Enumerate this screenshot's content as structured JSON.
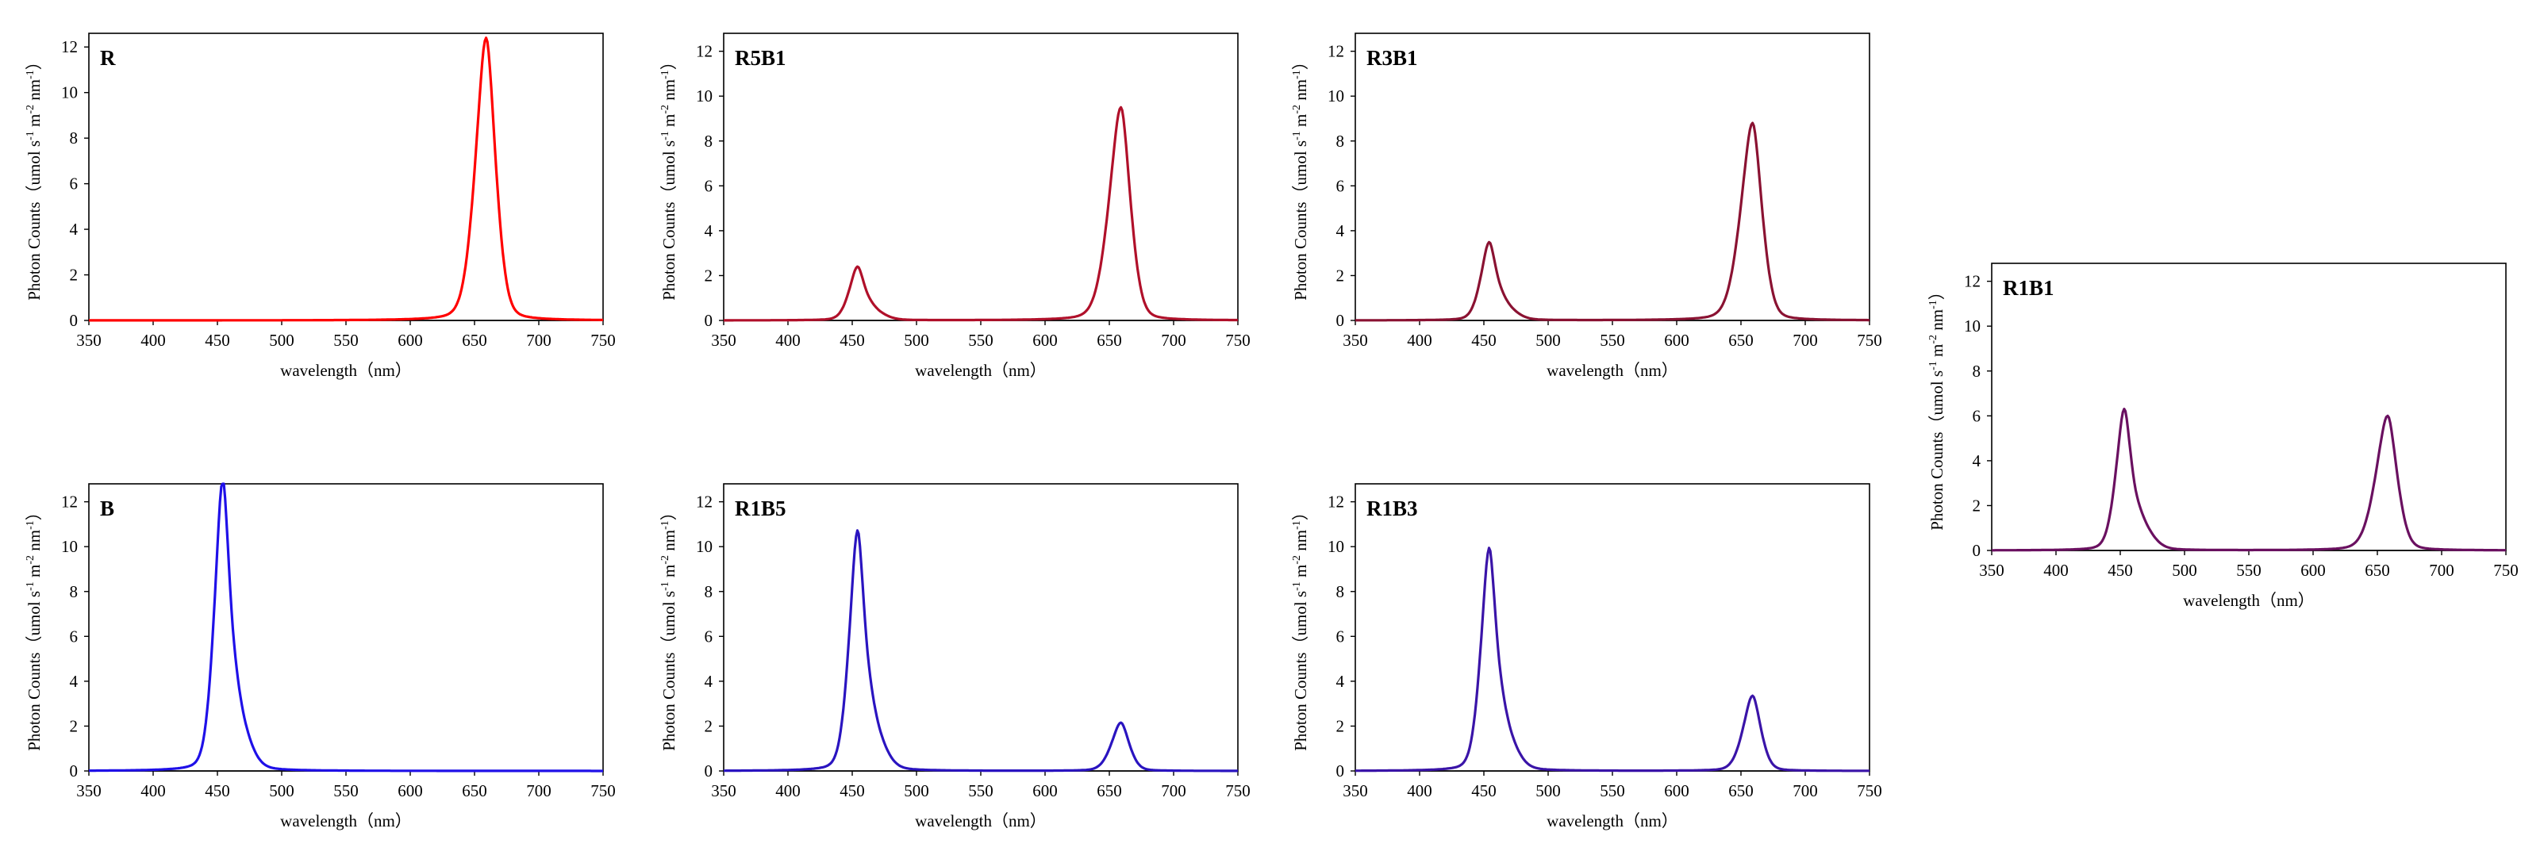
{
  "chart_data": [
    {
      "id": "R",
      "type": "line",
      "title": "R",
      "color": "#ff0000",
      "xlabel": "wavelength（nm）",
      "ylabel_prefix": "Photon Counts（umol s",
      "ylabel_sup1": "-1",
      "ylabel_mid": " m",
      "ylabel_sup2": "-2",
      "ylabel_mid2": " nm",
      "ylabel_sup3": "-1",
      "ylabel_suffix": "）",
      "xlim": [
        350,
        750
      ],
      "ylim": [
        0,
        12.6
      ],
      "xticks": [
        350,
        400,
        450,
        500,
        550,
        600,
        650,
        700,
        750
      ],
      "yticks": [
        0,
        2,
        4,
        6,
        8,
        10,
        12
      ],
      "xtick_labels": [
        "350",
        "400",
        "450",
        "500",
        "550",
        "600",
        "650",
        "700",
        "750"
      ],
      "ytick_labels": [
        "0",
        "2",
        "4",
        "6",
        "8",
        "10",
        "12"
      ],
      "series": [
        {
          "name": "R",
          "peaks": [
            {
              "center": 659,
              "height": 12.4,
              "width_left": 9,
              "width_right": 8
            }
          ]
        }
      ]
    },
    {
      "id": "R5B1",
      "type": "line",
      "title": "R5B1",
      "color": "#b0102a",
      "xlabel": "wavelength（nm）",
      "ylabel_prefix": "Photon Counts（umol s",
      "ylabel_sup1": "-1",
      "ylabel_mid": " m",
      "ylabel_sup2": "-2",
      "ylabel_mid2": " nm",
      "ylabel_sup3": "-1",
      "ylabel_suffix": "）",
      "xlim": [
        350,
        750
      ],
      "ylim": [
        0,
        12.8
      ],
      "xticks": [
        350,
        400,
        450,
        500,
        550,
        600,
        650,
        700,
        750
      ],
      "yticks": [
        0,
        2,
        4,
        6,
        8,
        10,
        12
      ],
      "xtick_labels": [
        "350",
        "400",
        "450",
        "500",
        "550",
        "600",
        "650",
        "700",
        "750"
      ],
      "ytick_labels": [
        "0",
        "2",
        "4",
        "6",
        "8",
        "10",
        "12"
      ],
      "series": [
        {
          "name": "R5B1",
          "peaks": [
            {
              "center": 454,
              "height": 2.3,
              "width_left": 7,
              "width_right": 6
            },
            {
              "center": 466,
              "height": 0.45,
              "width_left": 7,
              "width_right": 9
            },
            {
              "center": 659,
              "height": 9.5,
              "width_left": 10,
              "width_right": 8
            }
          ]
        }
      ]
    },
    {
      "id": "R3B1",
      "type": "line",
      "title": "R3B1",
      "color": "#8a1232",
      "xlabel": "wavelength（nm）",
      "ylabel_prefix": "Photon Counts（umol s",
      "ylabel_sup1": "-1",
      "ylabel_mid": " m",
      "ylabel_sup2": "-2",
      "ylabel_mid2": " nm",
      "ylabel_sup3": "-1",
      "ylabel_suffix": "）",
      "xlim": [
        350,
        750
      ],
      "ylim": [
        0,
        12.8
      ],
      "xticks": [
        350,
        400,
        450,
        500,
        550,
        600,
        650,
        700,
        750
      ],
      "yticks": [
        0,
        2,
        4,
        6,
        8,
        10,
        12
      ],
      "xtick_labels": [
        "350",
        "400",
        "450",
        "500",
        "550",
        "600",
        "650",
        "700",
        "750"
      ],
      "ytick_labels": [
        "0",
        "2",
        "4",
        "6",
        "8",
        "10",
        "12"
      ],
      "series": [
        {
          "name": "R3B1",
          "peaks": [
            {
              "center": 454,
              "height": 3.35,
              "width_left": 7,
              "width_right": 6
            },
            {
              "center": 466,
              "height": 0.65,
              "width_left": 7,
              "width_right": 9
            },
            {
              "center": 659,
              "height": 8.8,
              "width_left": 10,
              "width_right": 8
            }
          ]
        }
      ]
    },
    {
      "id": "R1B1",
      "type": "line",
      "title": "R1B1",
      "color": "#6a1060",
      "xlabel": "wavelength（nm）",
      "ylabel_prefix": "Photon Counts（umol s",
      "ylabel_sup1": "-1",
      "ylabel_mid": " m",
      "ylabel_sup2": "-2",
      "ylabel_mid2": " nm",
      "ylabel_sup3": "-1",
      "ylabel_suffix": "）",
      "xlim": [
        350,
        750
      ],
      "ylim": [
        0,
        12.8
      ],
      "xticks": [
        350,
        400,
        450,
        500,
        550,
        600,
        650,
        700,
        750
      ],
      "yticks": [
        0,
        2,
        4,
        6,
        8,
        10,
        12
      ],
      "xtick_labels": [
        "350",
        "400",
        "450",
        "500",
        "550",
        "600",
        "650",
        "700",
        "750"
      ],
      "ytick_labels": [
        "0",
        "2",
        "4",
        "6",
        "8",
        "10",
        "12"
      ],
      "series": [
        {
          "name": "R1B1",
          "peaks": [
            {
              "center": 453,
              "height": 6.1,
              "width_left": 7,
              "width_right": 6
            },
            {
              "center": 466,
              "height": 1.2,
              "width_left": 7,
              "width_right": 9
            },
            {
              "center": 658,
              "height": 6.0,
              "width_left": 10,
              "width_right": 8
            }
          ]
        }
      ]
    },
    {
      "id": "B",
      "type": "line",
      "title": "B",
      "color": "#1f10e8",
      "xlabel": "wavelength（nm）",
      "ylabel_prefix": "Photon Counts（umol s",
      "ylabel_sup1": "-1",
      "ylabel_mid": " m",
      "ylabel_sup2": "-2",
      "ylabel_mid2": " nm",
      "ylabel_sup3": "-1",
      "ylabel_suffix": "）",
      "xlim": [
        350,
        750
      ],
      "ylim": [
        0,
        12.8
      ],
      "xticks": [
        350,
        400,
        450,
        500,
        550,
        600,
        650,
        700,
        750
      ],
      "yticks": [
        0,
        2,
        4,
        6,
        8,
        10,
        12
      ],
      "xtick_labels": [
        "350",
        "400",
        "450",
        "500",
        "550",
        "600",
        "650",
        "700",
        "750"
      ],
      "ytick_labels": [
        "0",
        "2",
        "4",
        "6",
        "8",
        "10",
        "12"
      ],
      "series": [
        {
          "name": "B",
          "peaks": [
            {
              "center": 454,
              "height": 12.5,
              "width_left": 7,
              "width_right": 6
            },
            {
              "center": 466,
              "height": 2.4,
              "width_left": 7,
              "width_right": 9
            }
          ]
        }
      ]
    },
    {
      "id": "R1B5",
      "type": "line",
      "title": "R1B5",
      "color": "#2a14c0",
      "xlabel": "wavelength（nm）",
      "ylabel_prefix": "Photon Counts（umol s",
      "ylabel_sup1": "-1",
      "ylabel_mid": " m",
      "ylabel_sup2": "-2",
      "ylabel_mid2": " nm",
      "ylabel_sup3": "-1",
      "ylabel_suffix": "）",
      "xlim": [
        350,
        750
      ],
      "ylim": [
        0,
        12.8
      ],
      "xticks": [
        350,
        400,
        450,
        500,
        550,
        600,
        650,
        700,
        750
      ],
      "yticks": [
        0,
        2,
        4,
        6,
        8,
        10,
        12
      ],
      "xtick_labels": [
        "350",
        "400",
        "450",
        "500",
        "550",
        "600",
        "650",
        "700",
        "750"
      ],
      "ytick_labels": [
        "0",
        "2",
        "4",
        "6",
        "8",
        "10",
        "12"
      ],
      "series": [
        {
          "name": "R1B5",
          "peaks": [
            {
              "center": 454,
              "height": 10.3,
              "width_left": 7,
              "width_right": 6
            },
            {
              "center": 466,
              "height": 2.0,
              "width_left": 7,
              "width_right": 9
            },
            {
              "center": 659,
              "height": 2.15,
              "width_left": 8,
              "width_right": 7
            }
          ]
        }
      ]
    },
    {
      "id": "R1B3",
      "type": "line",
      "title": "R1B3",
      "color": "#3a14a8",
      "xlabel": "wavelength（nm）",
      "ylabel_prefix": "Photon Counts（umol s",
      "ylabel_sup1": "-1",
      "ylabel_mid": " m",
      "ylabel_sup2": "-2",
      "ylabel_mid2": " nm",
      "ylabel_sup3": "-1",
      "ylabel_suffix": "）",
      "xlim": [
        350,
        750
      ],
      "ylim": [
        0,
        12.8
      ],
      "xticks": [
        350,
        400,
        450,
        500,
        550,
        600,
        650,
        700,
        750
      ],
      "yticks": [
        0,
        2,
        4,
        6,
        8,
        10,
        12
      ],
      "xtick_labels": [
        "350",
        "400",
        "450",
        "500",
        "550",
        "600",
        "650",
        "700",
        "750"
      ],
      "ytick_labels": [
        "0",
        "2",
        "4",
        "6",
        "8",
        "10",
        "12"
      ],
      "series": [
        {
          "name": "R1B3",
          "peaks": [
            {
              "center": 454,
              "height": 9.55,
              "width_left": 7,
              "width_right": 6
            },
            {
              "center": 466,
              "height": 1.85,
              "width_left": 7,
              "width_right": 9
            },
            {
              "center": 659,
              "height": 3.35,
              "width_left": 8,
              "width_right": 7
            }
          ]
        }
      ]
    }
  ]
}
